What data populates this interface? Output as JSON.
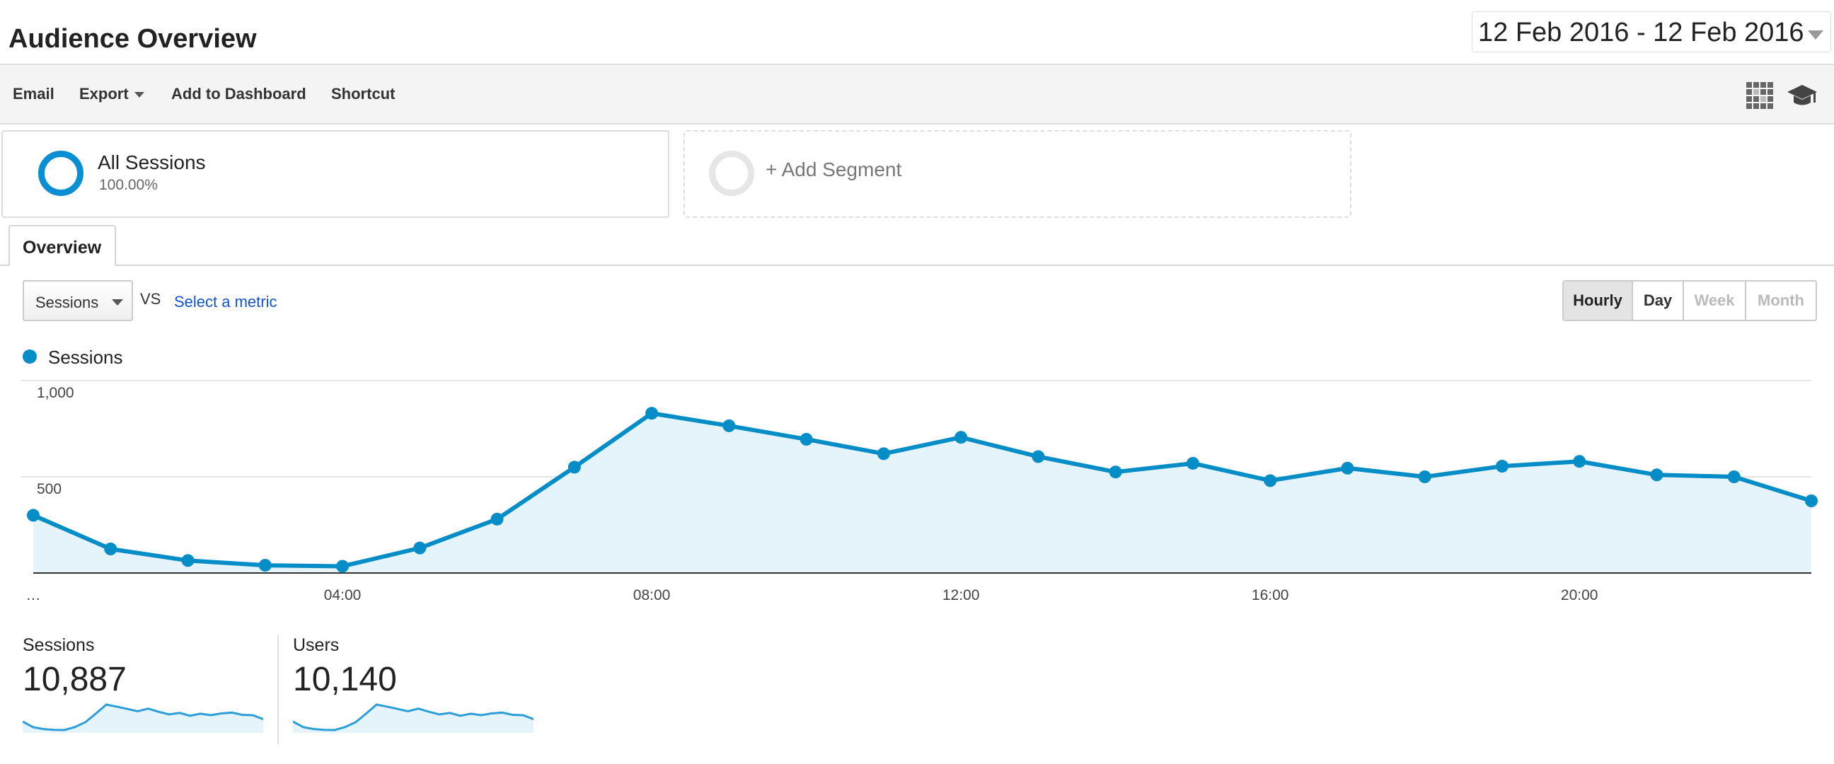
{
  "header": {
    "title": "Audience Overview",
    "date_range": "12 Feb 2016 - 12 Feb 2016"
  },
  "toolbar": {
    "email": "Email",
    "export": "Export",
    "add_to_dashboard": "Add to Dashboard",
    "shortcut": "Shortcut",
    "icons": [
      "grid-icon",
      "graduation-cap-icon"
    ]
  },
  "segments": {
    "all_sessions": {
      "name": "All Sessions",
      "percent": "100.00%"
    },
    "add_segment": "+ Add Segment"
  },
  "tabs": [
    {
      "label": "Overview",
      "active": true
    }
  ],
  "controls": {
    "metric": "Sessions",
    "vs": "VS",
    "select_metric": "Select a metric",
    "granularity": [
      {
        "label": "Hourly",
        "state": "selected"
      },
      {
        "label": "Day",
        "state": "enabled"
      },
      {
        "label": "Week",
        "state": "disabled"
      },
      {
        "label": "Month",
        "state": "disabled"
      }
    ]
  },
  "colors": {
    "accent": "#058dc7",
    "area": "#e5f3fa",
    "link": "#1155cc"
  },
  "chart_data": {
    "type": "area",
    "legend": "Sessions",
    "x": [
      "00:00",
      "01:00",
      "02:00",
      "03:00",
      "04:00",
      "05:00",
      "06:00",
      "07:00",
      "08:00",
      "09:00",
      "10:00",
      "11:00",
      "12:00",
      "13:00",
      "14:00",
      "15:00",
      "16:00",
      "17:00",
      "18:00",
      "19:00",
      "20:00",
      "21:00",
      "22:00",
      "23:00"
    ],
    "x_tick_labels": [
      "…",
      "04:00",
      "08:00",
      "12:00",
      "16:00",
      "20:00"
    ],
    "series": [
      {
        "name": "Sessions",
        "values": [
          300,
          125,
          65,
          40,
          35,
          130,
          280,
          550,
          830,
          765,
          695,
          620,
          705,
          605,
          525,
          570,
          480,
          545,
          500,
          555,
          580,
          510,
          500,
          375
        ]
      }
    ],
    "y_tick_labels": [
      "1,000",
      "500"
    ],
    "ylim": [
      0,
      1000
    ],
    "grid": true
  },
  "stats": [
    {
      "name": "Sessions",
      "value": "10,887"
    },
    {
      "name": "Users",
      "value": "10,140"
    }
  ]
}
